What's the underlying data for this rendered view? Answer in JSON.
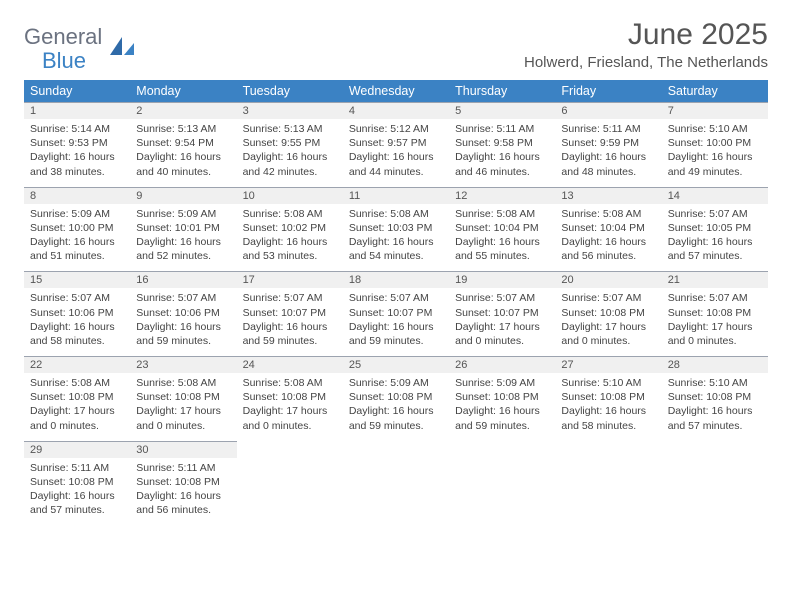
{
  "brand": {
    "main": "General",
    "sub": "Blue"
  },
  "title": "June 2025",
  "location": "Holwerd, Friesland, The Netherlands",
  "colors": {
    "header_bg": "#3b82c4",
    "header_text": "#ffffff",
    "daynum_bg": "#f0f0f0",
    "border": "#9ca3af",
    "body_text": "#444444",
    "title_text": "#555555"
  },
  "weekdays": [
    "Sunday",
    "Monday",
    "Tuesday",
    "Wednesday",
    "Thursday",
    "Friday",
    "Saturday"
  ],
  "weeks": [
    [
      {
        "n": "1",
        "sr": "5:14 AM",
        "ss": "9:53 PM",
        "dl": "16 hours and 38 minutes."
      },
      {
        "n": "2",
        "sr": "5:13 AM",
        "ss": "9:54 PM",
        "dl": "16 hours and 40 minutes."
      },
      {
        "n": "3",
        "sr": "5:13 AM",
        "ss": "9:55 PM",
        "dl": "16 hours and 42 minutes."
      },
      {
        "n": "4",
        "sr": "5:12 AM",
        "ss": "9:57 PM",
        "dl": "16 hours and 44 minutes."
      },
      {
        "n": "5",
        "sr": "5:11 AM",
        "ss": "9:58 PM",
        "dl": "16 hours and 46 minutes."
      },
      {
        "n": "6",
        "sr": "5:11 AM",
        "ss": "9:59 PM",
        "dl": "16 hours and 48 minutes."
      },
      {
        "n": "7",
        "sr": "5:10 AM",
        "ss": "10:00 PM",
        "dl": "16 hours and 49 minutes."
      }
    ],
    [
      {
        "n": "8",
        "sr": "5:09 AM",
        "ss": "10:00 PM",
        "dl": "16 hours and 51 minutes."
      },
      {
        "n": "9",
        "sr": "5:09 AM",
        "ss": "10:01 PM",
        "dl": "16 hours and 52 minutes."
      },
      {
        "n": "10",
        "sr": "5:08 AM",
        "ss": "10:02 PM",
        "dl": "16 hours and 53 minutes."
      },
      {
        "n": "11",
        "sr": "5:08 AM",
        "ss": "10:03 PM",
        "dl": "16 hours and 54 minutes."
      },
      {
        "n": "12",
        "sr": "5:08 AM",
        "ss": "10:04 PM",
        "dl": "16 hours and 55 minutes."
      },
      {
        "n": "13",
        "sr": "5:08 AM",
        "ss": "10:04 PM",
        "dl": "16 hours and 56 minutes."
      },
      {
        "n": "14",
        "sr": "5:07 AM",
        "ss": "10:05 PM",
        "dl": "16 hours and 57 minutes."
      }
    ],
    [
      {
        "n": "15",
        "sr": "5:07 AM",
        "ss": "10:06 PM",
        "dl": "16 hours and 58 minutes."
      },
      {
        "n": "16",
        "sr": "5:07 AM",
        "ss": "10:06 PM",
        "dl": "16 hours and 59 minutes."
      },
      {
        "n": "17",
        "sr": "5:07 AM",
        "ss": "10:07 PM",
        "dl": "16 hours and 59 minutes."
      },
      {
        "n": "18",
        "sr": "5:07 AM",
        "ss": "10:07 PM",
        "dl": "16 hours and 59 minutes."
      },
      {
        "n": "19",
        "sr": "5:07 AM",
        "ss": "10:07 PM",
        "dl": "17 hours and 0 minutes."
      },
      {
        "n": "20",
        "sr": "5:07 AM",
        "ss": "10:08 PM",
        "dl": "17 hours and 0 minutes."
      },
      {
        "n": "21",
        "sr": "5:07 AM",
        "ss": "10:08 PM",
        "dl": "17 hours and 0 minutes."
      }
    ],
    [
      {
        "n": "22",
        "sr": "5:08 AM",
        "ss": "10:08 PM",
        "dl": "17 hours and 0 minutes."
      },
      {
        "n": "23",
        "sr": "5:08 AM",
        "ss": "10:08 PM",
        "dl": "17 hours and 0 minutes."
      },
      {
        "n": "24",
        "sr": "5:08 AM",
        "ss": "10:08 PM",
        "dl": "17 hours and 0 minutes."
      },
      {
        "n": "25",
        "sr": "5:09 AM",
        "ss": "10:08 PM",
        "dl": "16 hours and 59 minutes."
      },
      {
        "n": "26",
        "sr": "5:09 AM",
        "ss": "10:08 PM",
        "dl": "16 hours and 59 minutes."
      },
      {
        "n": "27",
        "sr": "5:10 AM",
        "ss": "10:08 PM",
        "dl": "16 hours and 58 minutes."
      },
      {
        "n": "28",
        "sr": "5:10 AM",
        "ss": "10:08 PM",
        "dl": "16 hours and 57 minutes."
      }
    ],
    [
      {
        "n": "29",
        "sr": "5:11 AM",
        "ss": "10:08 PM",
        "dl": "16 hours and 57 minutes."
      },
      {
        "n": "30",
        "sr": "5:11 AM",
        "ss": "10:08 PM",
        "dl": "16 hours and 56 minutes."
      },
      null,
      null,
      null,
      null,
      null
    ]
  ],
  "labels": {
    "sunrise": "Sunrise: ",
    "sunset": "Sunset: ",
    "daylight": "Daylight: "
  }
}
